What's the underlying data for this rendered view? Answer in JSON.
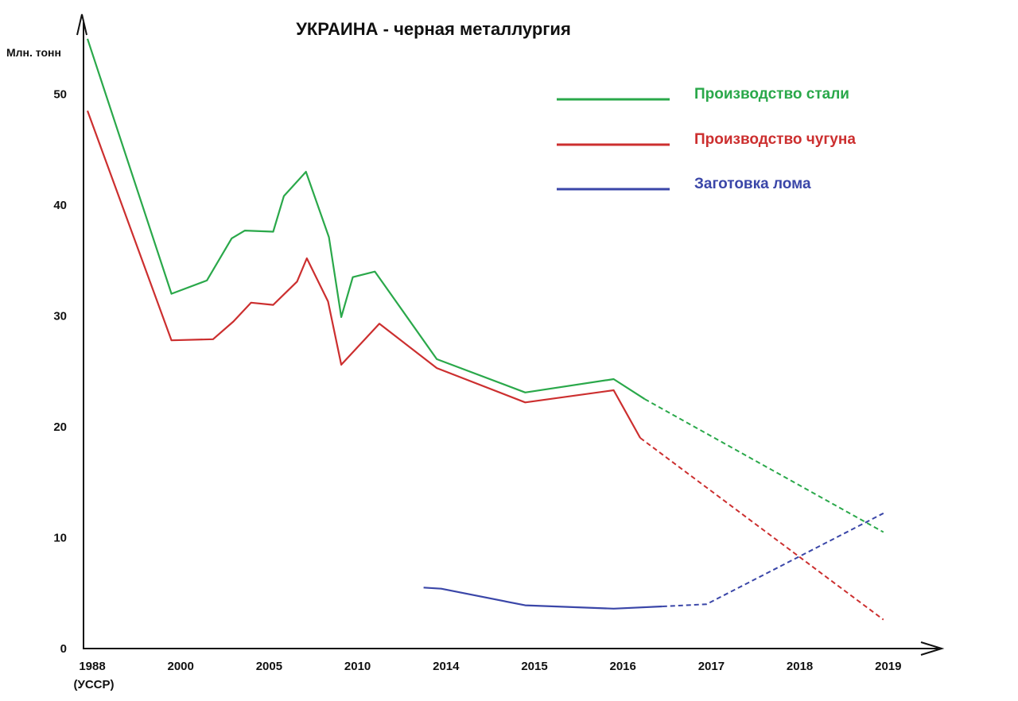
{
  "chart_data": {
    "type": "line",
    "title": "УКРАИНА - черная металлургия",
    "ylabel": "Млн. тонн",
    "xlabel": "",
    "ylim": [
      0,
      55
    ],
    "y_ticks": [
      0,
      10,
      20,
      30,
      40,
      50
    ],
    "x_ticks": [
      {
        "label": "1988",
        "sublabel": "(УССР)"
      },
      {
        "label": "2000",
        "sublabel": ""
      },
      {
        "label": "2005",
        "sublabel": ""
      },
      {
        "label": "2010",
        "sublabel": ""
      },
      {
        "label": "2014",
        "sublabel": ""
      },
      {
        "label": "2015",
        "sublabel": ""
      },
      {
        "label": "2016",
        "sublabel": ""
      },
      {
        "label": "2017",
        "sublabel": ""
      },
      {
        "label": "2018",
        "sublabel": ""
      },
      {
        "label": "2019",
        "sublabel": ""
      }
    ],
    "grid": false,
    "legend": "top-right",
    "series": [
      {
        "name": "Производство стали",
        "color": "#2aa84a",
        "solid": [
          [
            0.0,
            55.0
          ],
          [
            0.95,
            32.0
          ],
          [
            1.35,
            33.2
          ],
          [
            1.63,
            37.0
          ],
          [
            1.78,
            37.7
          ],
          [
            2.1,
            37.6
          ],
          [
            2.22,
            40.8
          ],
          [
            2.47,
            43.0
          ],
          [
            2.73,
            37.1
          ],
          [
            2.87,
            29.9
          ],
          [
            3.0,
            33.5
          ],
          [
            3.25,
            34.0
          ],
          [
            3.95,
            26.1
          ],
          [
            4.95,
            23.1
          ],
          [
            5.95,
            24.3
          ],
          [
            6.3,
            22.5
          ]
        ],
        "dashed": [
          [
            6.3,
            22.5
          ],
          [
            9.0,
            10.5
          ]
        ]
      },
      {
        "name": "Производство чугуна",
        "color": "#cc2f2f",
        "solid": [
          [
            0.0,
            48.5
          ],
          [
            0.95,
            27.8
          ],
          [
            1.42,
            27.9
          ],
          [
            1.65,
            29.5
          ],
          [
            1.85,
            31.2
          ],
          [
            2.1,
            31.0
          ],
          [
            2.37,
            33.1
          ],
          [
            2.48,
            35.2
          ],
          [
            2.72,
            31.3
          ],
          [
            2.87,
            25.6
          ],
          [
            3.3,
            29.3
          ],
          [
            3.95,
            25.3
          ],
          [
            4.95,
            22.2
          ],
          [
            5.95,
            23.3
          ],
          [
            6.25,
            19.0
          ]
        ],
        "dashed": [
          [
            6.25,
            19.0
          ],
          [
            9.0,
            2.6
          ]
        ]
      },
      {
        "name": "Заготовка лома",
        "color": "#3a46a8",
        "solid": [
          [
            3.8,
            5.5
          ],
          [
            4.0,
            5.4
          ],
          [
            4.95,
            3.9
          ],
          [
            5.95,
            3.6
          ],
          [
            6.5,
            3.8
          ]
        ],
        "dashed": [
          [
            6.5,
            3.8
          ],
          [
            7.0,
            4.0
          ],
          [
            9.0,
            12.2
          ]
        ]
      }
    ]
  }
}
